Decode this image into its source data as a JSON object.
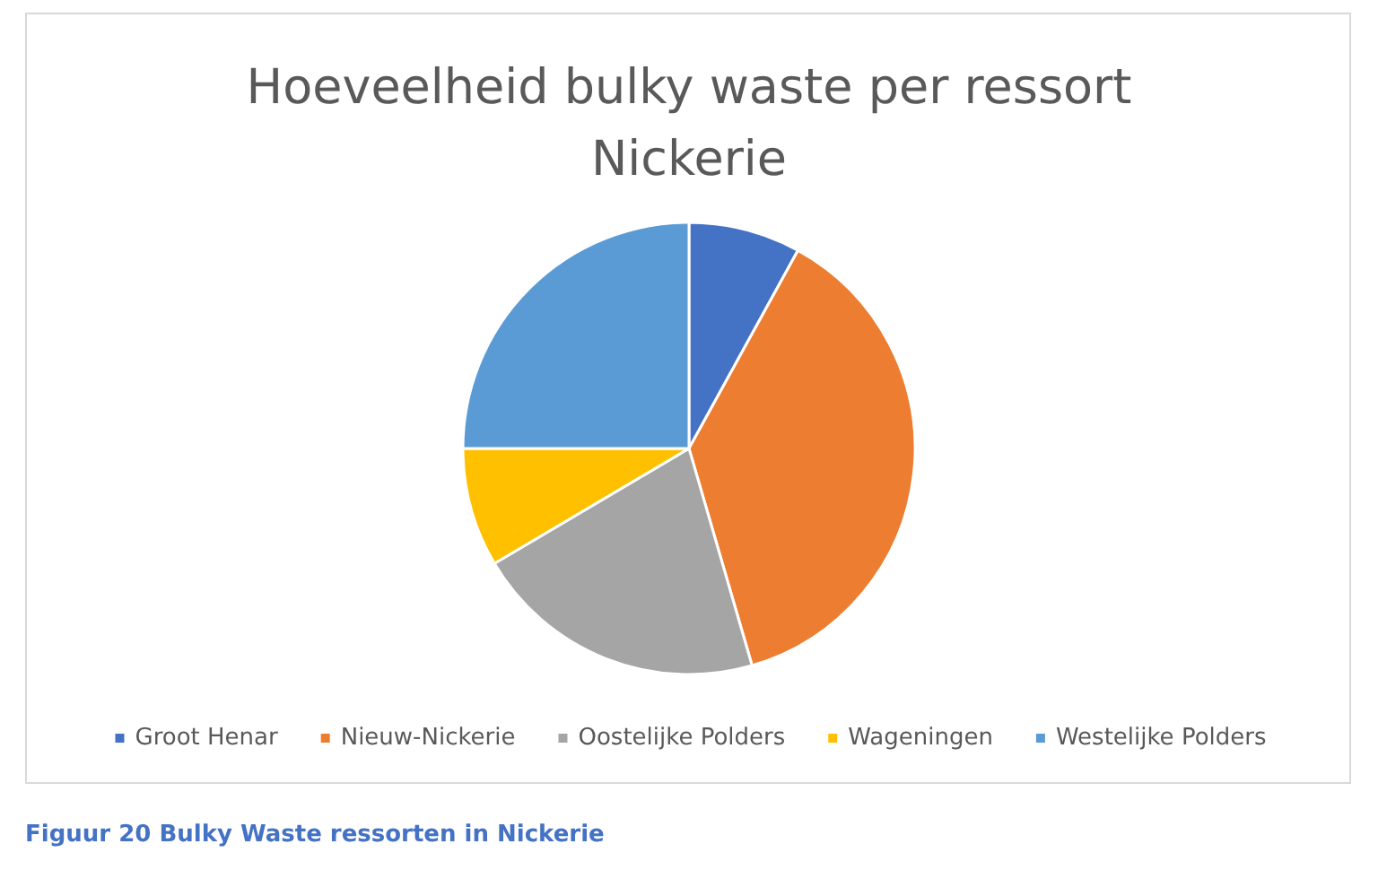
{
  "chart_data": {
    "type": "pie",
    "title": "Hoeveelheid bulky waste per ressort\nNickerie",
    "categories": [
      "Groot Henar",
      "Nieuw-Nickerie",
      "Oostelijke Polders",
      "Wageningen",
      "Westelijke Polders"
    ],
    "values": [
      8,
      37.5,
      21,
      8.5,
      25
    ],
    "colors": [
      "#4472c4",
      "#ed7d31",
      "#a5a5a5",
      "#ffc000",
      "#5b9bd5"
    ],
    "legend": "bottom",
    "annotations": [
      "Figuur 20 Bulky Waste ressorten in Nickerie"
    ]
  }
}
